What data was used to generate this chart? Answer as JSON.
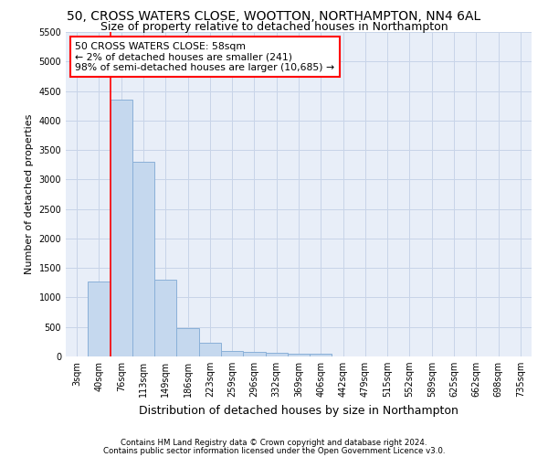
{
  "title": "50, CROSS WATERS CLOSE, WOOTTON, NORTHAMPTON, NN4 6AL",
  "subtitle": "Size of property relative to detached houses in Northampton",
  "xlabel": "Distribution of detached houses by size in Northampton",
  "ylabel": "Number of detached properties",
  "footer_line1": "Contains HM Land Registry data © Crown copyright and database right 2024.",
  "footer_line2": "Contains public sector information licensed under the Open Government Licence v3.0.",
  "categories": [
    "3sqm",
    "40sqm",
    "76sqm",
    "113sqm",
    "149sqm",
    "186sqm",
    "223sqm",
    "259sqm",
    "296sqm",
    "332sqm",
    "369sqm",
    "406sqm",
    "442sqm",
    "479sqm",
    "515sqm",
    "552sqm",
    "589sqm",
    "625sqm",
    "662sqm",
    "698sqm",
    "735sqm"
  ],
  "values": [
    0,
    1270,
    4350,
    3300,
    1300,
    480,
    225,
    100,
    75,
    60,
    50,
    45,
    0,
    0,
    0,
    0,
    0,
    0,
    0,
    0,
    0
  ],
  "bar_color": "#c5d8ee",
  "bar_edge_color": "#8ab0d8",
  "red_line_x": 1.5,
  "annotation_text_line1": "50 CROSS WATERS CLOSE: 58sqm",
  "annotation_text_line2": "← 2% of detached houses are smaller (241)",
  "annotation_text_line3": "98% of semi-detached houses are larger (10,685) →",
  "ylim": [
    0,
    5500
  ],
  "yticks": [
    0,
    500,
    1000,
    1500,
    2000,
    2500,
    3000,
    3500,
    4000,
    4500,
    5000,
    5500
  ],
  "grid_color": "#c8d4e8",
  "bg_color": "#e8eef8",
  "title_fontsize": 10,
  "subtitle_fontsize": 9,
  "tick_fontsize": 7,
  "ylabel_fontsize": 8,
  "xlabel_fontsize": 9
}
